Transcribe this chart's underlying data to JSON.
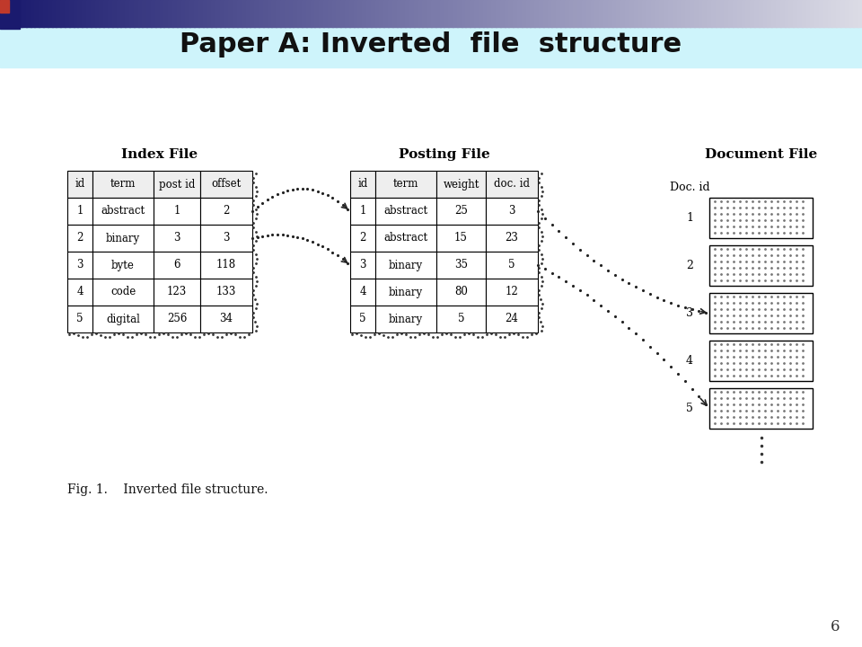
{
  "title": "Paper A: Inverted  file  structure",
  "title_bg_color": "#cef4fb",
  "slide_bg_color": "#ffffff",
  "fig_caption": "Fig. 1.    Inverted file structure.",
  "page_number": "6",
  "index_file": {
    "title": "Index File",
    "headers": [
      "id",
      "term",
      "post id",
      "offset"
    ],
    "rows": [
      [
        "1",
        "abstract",
        "1",
        "2"
      ],
      [
        "2",
        "binary",
        "3",
        "3"
      ],
      [
        "3",
        "byte",
        "6",
        "118"
      ],
      [
        "4",
        "code",
        "123",
        "133"
      ],
      [
        "5",
        "digital",
        "256",
        "34"
      ]
    ]
  },
  "posting_file": {
    "title": "Posting File",
    "headers": [
      "id",
      "term",
      "weight",
      "doc. id"
    ],
    "rows": [
      [
        "1",
        "abstract",
        "25",
        "3"
      ],
      [
        "2",
        "abstract",
        "15",
        "23"
      ],
      [
        "3",
        "binary",
        "35",
        "5"
      ],
      [
        "4",
        "binary",
        "80",
        "12"
      ],
      [
        "5",
        "binary",
        "5",
        "24"
      ]
    ]
  },
  "document_file": {
    "title": "Document File",
    "doc_id_label": "Doc. id",
    "doc_ids": [
      "1",
      "2",
      "3",
      "4",
      "5"
    ]
  }
}
